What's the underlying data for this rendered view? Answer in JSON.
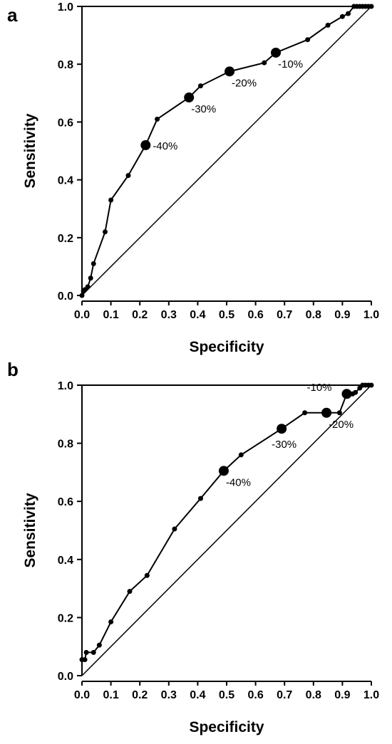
{
  "chart_data": [
    {
      "panel": "a",
      "type": "line",
      "xlabel": "Specificity",
      "ylabel": "Sensitivity",
      "xlim": [
        0,
        1
      ],
      "ylim": [
        0,
        1
      ],
      "xticks": [
        "0.0",
        "0.1",
        "0.2",
        "0.3",
        "0.4",
        "0.5",
        "0.6",
        "0.7",
        "0.8",
        "0.9",
        "1.0"
      ],
      "yticks": [
        "0.0",
        "0.2",
        "0.4",
        "0.6",
        "0.8",
        "1.0"
      ],
      "reference_line": [
        [
          0,
          0
        ],
        [
          1,
          1
        ]
      ],
      "grid": false,
      "series": [
        {
          "points": [
            [
              0.0,
              0.0
            ],
            [
              0.005,
              0.015
            ],
            [
              0.01,
              0.02
            ],
            [
              0.02,
              0.03
            ],
            [
              0.03,
              0.06
            ],
            [
              0.04,
              0.11
            ],
            [
              0.08,
              0.22
            ],
            [
              0.1,
              0.33
            ],
            [
              0.16,
              0.415
            ],
            [
              0.22,
              0.52
            ],
            [
              0.26,
              0.61
            ],
            [
              0.37,
              0.685
            ],
            [
              0.41,
              0.725
            ],
            [
              0.51,
              0.775
            ],
            [
              0.63,
              0.805
            ],
            [
              0.67,
              0.84
            ],
            [
              0.78,
              0.885
            ],
            [
              0.85,
              0.935
            ],
            [
              0.9,
              0.965
            ],
            [
              0.92,
              0.975
            ],
            [
              0.94,
              1.0
            ],
            [
              0.95,
              1.0
            ],
            [
              0.96,
              1.0
            ],
            [
              0.97,
              1.0
            ],
            [
              0.98,
              1.0
            ],
            [
              0.99,
              1.0
            ],
            [
              1.0,
              1.0
            ]
          ]
        }
      ],
      "highlighted_points": [
        {
          "x": 0.22,
          "y": 0.52,
          "label": "-40%",
          "label_pos": "right"
        },
        {
          "x": 0.37,
          "y": 0.685,
          "label": "-30%",
          "label_pos": "below-right"
        },
        {
          "x": 0.51,
          "y": 0.775,
          "label": "-20%",
          "label_pos": "below-right"
        },
        {
          "x": 0.67,
          "y": 0.84,
          "label": "-10%",
          "label_pos": "below-right"
        }
      ]
    },
    {
      "panel": "b",
      "type": "line",
      "xlabel": "Specificity",
      "ylabel": "Sensitivity",
      "xlim": [
        0,
        1
      ],
      "ylim": [
        0,
        1
      ],
      "xticks": [
        "0.0",
        "0.1",
        "0.2",
        "0.3",
        "0.4",
        "0.5",
        "0.6",
        "0.7",
        "0.8",
        "0.9",
        "1.0"
      ],
      "yticks": [
        "0.0",
        "0.2",
        "0.4",
        "0.6",
        "0.8",
        "1.0"
      ],
      "reference_line": [
        [
          0,
          0
        ],
        [
          1,
          1
        ]
      ],
      "grid": false,
      "series": [
        {
          "points": [
            [
              0.0,
              0.055
            ],
            [
              0.01,
              0.055
            ],
            [
              0.015,
              0.08
            ],
            [
              0.04,
              0.08
            ],
            [
              0.06,
              0.105
            ],
            [
              0.1,
              0.185
            ],
            [
              0.165,
              0.29
            ],
            [
              0.225,
              0.345
            ],
            [
              0.32,
              0.505
            ],
            [
              0.41,
              0.61
            ],
            [
              0.49,
              0.705
            ],
            [
              0.55,
              0.76
            ],
            [
              0.69,
              0.85
            ],
            [
              0.77,
              0.905
            ],
            [
              0.845,
              0.905
            ],
            [
              0.89,
              0.905
            ],
            [
              0.915,
              0.97
            ],
            [
              0.935,
              0.97
            ],
            [
              0.945,
              0.975
            ],
            [
              0.96,
              0.99
            ],
            [
              0.97,
              1.0
            ],
            [
              0.98,
              1.0
            ],
            [
              0.99,
              1.0
            ],
            [
              1.0,
              1.0
            ]
          ]
        }
      ],
      "highlighted_points": [
        {
          "x": 0.49,
          "y": 0.705,
          "label": "-40%",
          "label_pos": "below-right"
        },
        {
          "x": 0.69,
          "y": 0.85,
          "label": "-30%",
          "label_pos": "below-left"
        },
        {
          "x": 0.845,
          "y": 0.905,
          "label": "-20%",
          "label_pos": "below-right"
        },
        {
          "x": 0.915,
          "y": 0.97,
          "label": "-10%",
          "label_pos": "left"
        }
      ]
    }
  ]
}
